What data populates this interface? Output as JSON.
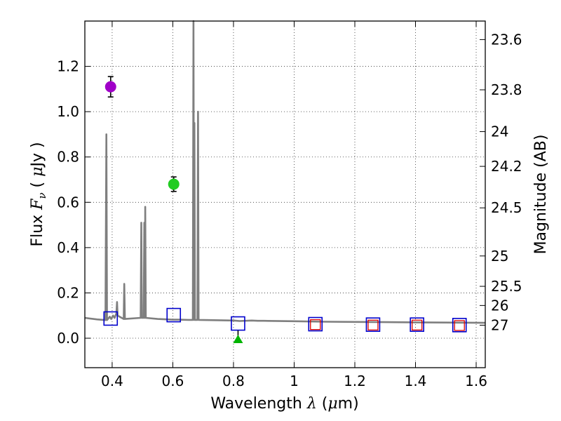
{
  "chart_data": {
    "type": "scatter",
    "title": "",
    "xlabel": "Wavelength  λ (μm)",
    "ylabel": "Flux  Fν  ( μJy )",
    "xlabel_parts": {
      "pre": "Wavelength ",
      "sym": "λ",
      "mid": " (",
      "mu": "μ",
      "post": "m)"
    },
    "ylabel_parts": {
      "pre": "Flux  ",
      "sym": "F",
      "sub": "ν",
      "mid": "  ( ",
      "mu": "μ",
      "post": "Jy )"
    },
    "y2label": "Magnitude (AB)",
    "xlim": [
      0.31,
      1.63
    ],
    "ylim": [
      -0.13,
      1.4
    ],
    "grid": true,
    "x_ticks": [
      {
        "value": 0.4,
        "label": "0.4"
      },
      {
        "value": 0.6,
        "label": "0.6"
      },
      {
        "value": 0.8,
        "label": "0.8"
      },
      {
        "value": 1.0,
        "label": "1"
      },
      {
        "value": 1.2,
        "label": "1.2"
      },
      {
        "value": 1.4,
        "label": "1.4"
      },
      {
        "value": 1.6,
        "label": "1.6"
      }
    ],
    "y_ticks": [
      {
        "value": 0.0,
        "label": "0.0"
      },
      {
        "value": 0.2,
        "label": "0.2"
      },
      {
        "value": 0.4,
        "label": "0.4"
      },
      {
        "value": 0.6,
        "label": "0.6"
      },
      {
        "value": 0.8,
        "label": "0.8"
      },
      {
        "value": 1.0,
        "label": "1.0"
      },
      {
        "value": 1.2,
        "label": "1.2"
      }
    ],
    "mag_ticks": [
      {
        "flux": 1.3182,
        "label": "23.6"
      },
      {
        "flux": 1.0965,
        "label": "23.8"
      },
      {
        "flux": 0.912,
        "label": "24"
      },
      {
        "flux": 0.7586,
        "label": "24.2"
      },
      {
        "flux": 0.5754,
        "label": "24.5"
      },
      {
        "flux": 0.3631,
        "label": "25"
      },
      {
        "flux": 0.2291,
        "label": "25.5"
      },
      {
        "flux": 0.1445,
        "label": "26"
      },
      {
        "flux": 0.0575,
        "label": "27"
      }
    ],
    "model_spectrum": {
      "name": "model",
      "color": "#7f7f7f",
      "points": [
        [
          0.31,
          0.09
        ],
        [
          0.35,
          0.083
        ],
        [
          0.378,
          0.08
        ],
        [
          0.381,
          0.9
        ],
        [
          0.383,
          0.08
        ],
        [
          0.392,
          0.095
        ],
        [
          0.397,
          0.085
        ],
        [
          0.403,
          0.1
        ],
        [
          0.408,
          0.09
        ],
        [
          0.414,
          0.11
        ],
        [
          0.416,
          0.16
        ],
        [
          0.418,
          0.1
        ],
        [
          0.438,
          0.085
        ],
        [
          0.44,
          0.24
        ],
        [
          0.442,
          0.085
        ],
        [
          0.494,
          0.09
        ],
        [
          0.496,
          0.51
        ],
        [
          0.498,
          0.09
        ],
        [
          0.504,
          0.09
        ],
        [
          0.506,
          0.51
        ],
        [
          0.508,
          0.09
        ],
        [
          0.509,
          0.58
        ],
        [
          0.511,
          0.09
        ],
        [
          0.55,
          0.085
        ],
        [
          0.6,
          0.082
        ],
        [
          0.62,
          0.082
        ],
        [
          0.652,
          0.081
        ],
        [
          0.666,
          0.081
        ],
        [
          0.668,
          1.4
        ],
        [
          0.67,
          0.081
        ],
        [
          0.671,
          0.95
        ],
        [
          0.673,
          0.081
        ],
        [
          0.681,
          0.081
        ],
        [
          0.683,
          1.0
        ],
        [
          0.685,
          0.081
        ],
        [
          0.72,
          0.08
        ],
        [
          0.8,
          0.078
        ],
        [
          0.82,
          0.076
        ],
        [
          0.86,
          0.078
        ],
        [
          0.88,
          0.077
        ],
        [
          0.9,
          0.077
        ],
        [
          1.0,
          0.075
        ],
        [
          1.1,
          0.073
        ],
        [
          1.2,
          0.072
        ],
        [
          1.3,
          0.071
        ],
        [
          1.4,
          0.07
        ],
        [
          1.5,
          0.069
        ],
        [
          1.63,
          0.068
        ]
      ]
    },
    "observations": [
      {
        "name": "violet-point",
        "x": 0.395,
        "y": 1.11,
        "yerr": 0.045,
        "color": "#a000c8",
        "marker": "circle"
      },
      {
        "name": "green-point",
        "x": 0.603,
        "y": 0.68,
        "yerr": 0.032,
        "color": "#22cc22",
        "marker": "circle"
      },
      {
        "name": "upper-limit",
        "x": 0.815,
        "y": -0.003,
        "color": "#00b400",
        "marker": "triangle"
      }
    ],
    "model_photometry": [
      {
        "x": 0.395,
        "y": 0.087
      },
      {
        "x": 0.603,
        "y": 0.102
      },
      {
        "x": 0.815,
        "y": 0.065
      },
      {
        "x": 1.07,
        "y": 0.062
      },
      {
        "x": 1.26,
        "y": 0.06
      },
      {
        "x": 1.405,
        "y": 0.06
      },
      {
        "x": 1.545,
        "y": 0.058
      }
    ],
    "observed_photometry_squares": [
      {
        "x": 1.07,
        "y": 0.06
      },
      {
        "x": 1.26,
        "y": 0.058
      },
      {
        "x": 1.405,
        "y": 0.058
      },
      {
        "x": 1.545,
        "y": 0.056
      }
    ],
    "colors": {
      "model_square": "#0000cc",
      "observed_square": "#dd0000",
      "grid": "#000000",
      "errorbar": "#000000"
    }
  }
}
